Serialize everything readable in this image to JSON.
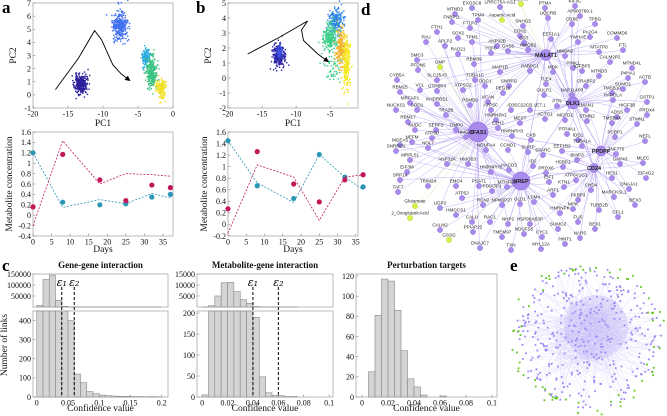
{
  "panel_labels": {
    "a": "a",
    "b": "b",
    "c": "c",
    "d": "d",
    "e": "e"
  },
  "chart_data": [
    {
      "type": "scatter",
      "panel": "a",
      "xlabel": "PC1",
      "ylabel": "PC2",
      "xlim": [
        -20,
        0
      ],
      "ylim": [
        -1,
        7
      ],
      "xticks": [
        "-20",
        "-15",
        "-10",
        "-5",
        "0"
      ],
      "yticks": [
        "-1",
        "0",
        "1",
        "2",
        "3",
        "4",
        "5",
        "6",
        "7"
      ],
      "clusters": [
        {
          "color": "#2b1e9c",
          "center": [
            -13.2,
            0.8
          ],
          "sd": [
            0.45,
            0.38
          ],
          "n": 260
        },
        {
          "color": "#3f6ff0",
          "center": [
            -7.6,
            5.3
          ],
          "sd": [
            0.55,
            0.55
          ],
          "n": 300
        },
        {
          "color": "#29a9e0",
          "center": [
            -3.9,
            2.9
          ],
          "sd": [
            0.3,
            0.35
          ],
          "n": 120
        },
        {
          "color": "#3cc383",
          "center": [
            -3.1,
            1.8
          ],
          "sd": [
            0.4,
            0.55
          ],
          "n": 260
        },
        {
          "color": "#f0e020",
          "center": [
            -1.7,
            0.5
          ],
          "sd": [
            0.35,
            0.35
          ],
          "n": 160
        }
      ],
      "trajectory": [
        [
          -16.8,
          0.4
        ],
        [
          -13.5,
          2.8
        ],
        [
          -11.2,
          4.9
        ],
        [
          -10.2,
          4.2
        ],
        [
          -8.6,
          2.3
        ],
        [
          -7.4,
          1.6
        ],
        [
          -6.2,
          1.1
        ]
      ]
    },
    {
      "type": "line",
      "panel": "a",
      "xlabel": "Days",
      "ylabel": "Metabolite concentration",
      "xlim": [
        0,
        37.7
      ],
      "ylim": [
        -0.4,
        1.6
      ],
      "xticks": [
        "0",
        "5",
        "10",
        "15",
        "20",
        "25",
        "30",
        "35"
      ],
      "yticks": [
        "-0.4",
        "-0.2",
        "0",
        "0.2",
        "0.4",
        "0.6",
        "0.8",
        "1",
        "1.2",
        "1.4",
        "1.6"
      ],
      "x": [
        0,
        8,
        18,
        25,
        32,
        37
      ],
      "series": [
        {
          "color": "#2b96b5",
          "observed": [
            1.2,
            0.25,
            0.2,
            0.22,
            0.35,
            0.4
          ],
          "predicted": [
            1.2,
            0.15,
            0.3,
            0.22,
            0.42,
            0.33
          ]
        },
        {
          "color": "#c2185b",
          "observed": [
            0.16,
            1.17,
            0.68,
            0.28,
            0.58,
            0.53
          ],
          "predicted": [
            -0.2,
            1.43,
            0.6,
            0.8,
            0.78,
            0.75
          ]
        }
      ]
    },
    {
      "type": "scatter",
      "panel": "b",
      "xlabel": "PC1",
      "ylabel": "PC2",
      "xlim": [
        -20,
        -0.9
      ],
      "ylim": [
        -2,
        5
      ],
      "xticks": [
        "-20",
        "-15",
        "-10",
        "-5"
      ],
      "yticks": [
        "-2",
        "-1",
        "0",
        "1",
        "2",
        "3",
        "4",
        "5"
      ],
      "clusters": [
        {
          "color": "#2d22a8",
          "center": [
            -12.6,
            1.5
          ],
          "sd": [
            0.45,
            0.4
          ],
          "n": 240
        },
        {
          "color": "#3b55e0",
          "center": [
            -12.4,
            1.7
          ],
          "sd": [
            0.2,
            0.25
          ],
          "n": 60
        },
        {
          "color": "#2f86e8",
          "center": [
            -4.2,
            3.8
          ],
          "sd": [
            0.5,
            0.4
          ],
          "n": 200
        },
        {
          "color": "#3ccf8a",
          "center": [
            -5.0,
            2.7
          ],
          "sd": [
            0.55,
            0.45
          ],
          "n": 220
        },
        {
          "color": "#3ccf8a",
          "center": [
            -4.6,
            0.6
          ],
          "sd": [
            0.7,
            0.5
          ],
          "n": 50
        },
        {
          "color": "#f2b22a",
          "center": [
            -3.4,
            2.0
          ],
          "sd": [
            0.4,
            0.6
          ],
          "n": 200
        },
        {
          "color": "#f5e81e",
          "center": [
            -2.6,
            1.0
          ],
          "sd": [
            0.3,
            0.9
          ],
          "n": 220
        }
      ],
      "trajectory": [
        [
          -17.1,
          1.6
        ],
        [
          -12.5,
          2.7
        ],
        [
          -8.3,
          3.8
        ],
        [
          -9.2,
          3.2
        ],
        [
          -8.9,
          2.5
        ],
        [
          -6.8,
          1.6
        ],
        [
          -5.3,
          1.1
        ]
      ]
    },
    {
      "type": "line",
      "panel": "b",
      "xlabel": "Days",
      "ylabel": "Metabolite concentration",
      "xlim": [
        0,
        35.6
      ],
      "ylim": [
        -0.2,
        1.6
      ],
      "xticks": [
        "0",
        "5",
        "10",
        "15",
        "20",
        "25",
        "30",
        "35"
      ],
      "yticks": [
        "-0.2",
        "0",
        "0.2",
        "0.4",
        "0.6",
        "0.8",
        "1",
        "1.2",
        "1.4",
        "1.6"
      ],
      "x": [
        0,
        8,
        18,
        25,
        32,
        37
      ],
      "series": [
        {
          "color": "#2b96b5",
          "observed": [
            1.45,
            0.67,
            0.45,
            1.21,
            0.82,
            0.65
          ],
          "predicted": [
            1.45,
            0.72,
            0.38,
            1.21,
            0.82,
            0.6
          ]
        },
        {
          "color": "#c2185b",
          "observed": [
            0.27,
            1.26,
            0.7,
            0.39,
            0.77,
            0.86
          ],
          "predicted": [
            -0.15,
            1.03,
            0.82,
            0.07,
            0.82,
            0.86
          ]
        }
      ]
    },
    {
      "type": "bar",
      "panel": "c",
      "title": "Gene-gene interaction",
      "xlabel": "Confidence value",
      "ylabel": "Number of links",
      "bin_start": 0,
      "bin_width": 0.01,
      "counts": [
        7000,
        125000,
        145000,
        30000,
        3000,
        400,
        120,
        75,
        28,
        18,
        10,
        7,
        5,
        3,
        4,
        2,
        2,
        1,
        2,
        1
      ],
      "xlim": [
        -0.006,
        0.21
      ],
      "xticks": [
        "0",
        "0.05",
        "0.1",
        "0.15",
        "0.2"
      ],
      "upper_ylim": [
        0,
        150000
      ],
      "upper_yticks": [
        "50000",
        "100000",
        "150000"
      ],
      "lower_ylim": [
        0,
        450
      ],
      "lower_yticks": [
        "0",
        "100",
        "200",
        "300",
        "400"
      ],
      "thresholds": [
        {
          "label": "ε₁",
          "value": 0.04
        },
        {
          "label": "ε₂",
          "value": 0.06
        }
      ]
    },
    {
      "type": "bar",
      "panel": "c",
      "title": "Metabolite-gene interaction",
      "xlabel": "Confidence value",
      "bin_start": 0,
      "bin_width": 0.005,
      "counts": [
        5,
        600,
        5000,
        11000,
        11200,
        7000,
        3300,
        1700,
        190,
        48,
        10,
        4,
        3,
        1,
        1
      ],
      "xlim": [
        -0.004,
        0.103
      ],
      "xticks": [
        "0",
        "0.02",
        "0.04",
        "0.06",
        "0.08",
        "0.1"
      ],
      "upper_ylim": [
        0,
        15000
      ],
      "upper_yticks": [
        "5000",
        "10000",
        "15000"
      ],
      "lower_ylim": [
        0,
        205
      ],
      "lower_yticks": [
        "0",
        "50",
        "100",
        "150",
        "200"
      ],
      "thresholds": [
        {
          "label": "ε₁",
          "value": 0.04
        },
        {
          "label": "ε₂",
          "value": 0.06
        }
      ]
    },
    {
      "type": "bar",
      "panel": "c",
      "title": "Perturbation targets",
      "xlabel": "Confidence value",
      "bin_start": 0,
      "bin_width": 0.005,
      "counts": [
        0,
        25,
        81,
        117,
        115,
        86,
        46,
        18,
        10,
        2,
        0,
        0,
        1
      ],
      "xlim": [
        -0.0046,
        0.1038
      ],
      "xticks": [
        "0",
        "0.02",
        "0.04",
        "0.06",
        "0.08",
        "0.1"
      ],
      "ylim": [
        0,
        122
      ],
      "yticks": [
        "0",
        "20",
        "40",
        "60",
        "80",
        "100",
        "120"
      ]
    }
  ],
  "network_d": {
    "hubs": [
      "ZFAS1",
      "NREP",
      "DLK1",
      "MALAT1",
      "PPDPF",
      "CD24"
    ],
    "metabolites": [
      "Glycine",
      "Aspartic Acid",
      "GMP",
      "Glutamate",
      "2_OxoglutaricAcid",
      "GSSG"
    ],
    "genes": [
      "EXOSC8",
      "LRRC75A-AS1",
      "PTMA",
      "KIF5C",
      "MTND2",
      "FNBP1L",
      "UQCRB",
      "AP000769.1",
      "TPM4",
      "SNHG5",
      "CBX5",
      "TPBG",
      "FTLP3",
      "FTH1",
      "CDH2",
      "SOX2",
      "DST",
      "EEF1A1",
      "PA2G4",
      "COMMD6",
      "PAU",
      "TPM1",
      "APLP2",
      "ANP32B",
      "YWHAE",
      "HMGB2",
      "MTATP8",
      "FTL",
      "RAD21",
      "H1F0",
      "SMC3",
      "PFDN5",
      "GAS5",
      "HMGN2",
      "CALM2P2",
      "RBM39",
      "PINK1",
      "MTND4L",
      "MAP1B",
      "PABPC1",
      "MDK",
      "IGFBP5",
      "MTND3",
      "P4HA1",
      "ACTB",
      "CYB5A",
      "SLC25A3",
      "TUBA1C",
      "TLE4",
      "CRABP2",
      "VCL",
      "GTPBP4",
      "ATP5G2",
      "ODC1",
      "SNRPG",
      "PEG10",
      "GULP1",
      "NAP1L4P3",
      "TMSB10",
      "SUMO1",
      "RBM25",
      "MRFAP1",
      "KHDRBS1",
      "PSMB6",
      "VCAN",
      "PAPOLA",
      "GSTP1",
      "NUCKS1",
      "SOD1",
      "ATP5C",
      "ID3",
      "SC22CB.1E7.1",
      "PTN",
      "LMAN1",
      "HIGF3B",
      "TRA2B",
      "RBM17",
      "HNRNPA1",
      "ACTG1",
      "MCFD2",
      "STMN2",
      "ADSS",
      "PRDX4",
      "TMSB4X",
      "STMN1",
      "NUDC",
      "SERF2",
      "TIMP0",
      "EZH2",
      "MEST",
      "ATP5D",
      "HMGA1",
      "MGEA5",
      "NEFM",
      "CKB",
      "HNRNPH3",
      "PTP4A1",
      "IDD1",
      "NOL7",
      "SNRPD1",
      "TUBA1A",
      "PCBP1",
      "NEFL",
      "NDUFA4",
      "CCND1",
      "SLIRP",
      "SPARC",
      "EEF1B2",
      "ZNF770",
      "MRPL51",
      "ANP32A",
      "HMGB3",
      "ID2",
      "BNIP3",
      "GAP43",
      "MLEC",
      "EIF3M",
      "HNRNPH1",
      "HACD3",
      "PRDX6",
      "HSBP1",
      "ATP6V1G1",
      "HES1",
      "EIF4G2",
      "SRP14",
      "TRIM24",
      "EMC4",
      "PSAT1",
      "PDIA3P1",
      "MTHFD2",
      "EIF1",
      "KTN1",
      "CHD4",
      "DNAJA1",
      "TAF7",
      "ATP5J",
      "FKBP3",
      "MARCKSL1",
      "RCN2",
      "NPM1P27",
      "GLD1",
      "LSM4",
      "ARF1",
      "HNRNPK",
      "NIPK",
      "TUBB2B",
      "BEX3",
      "UGP2",
      "HMGCS1",
      "CALU",
      "RAC1",
      "NHP2",
      "HSP90AB3P",
      "FUS",
      "CFL1",
      "CALM2",
      "PPIAP22",
      "SUMO2",
      "BEX1",
      "TMEM97",
      "NDUFS5",
      "CYC1",
      "NARS",
      "DNAJC7",
      "TXN",
      "MYL12A",
      "HINT1"
    ],
    "colors": {
      "gene": "#a98bee",
      "metabolite": "#d8ef45",
      "edge": "#b7a3f2"
    }
  },
  "network_e": {
    "colors": {
      "gene": "#9c8cf5",
      "metabolite": "#62c41f",
      "edge": "#c9c1f7"
    }
  }
}
